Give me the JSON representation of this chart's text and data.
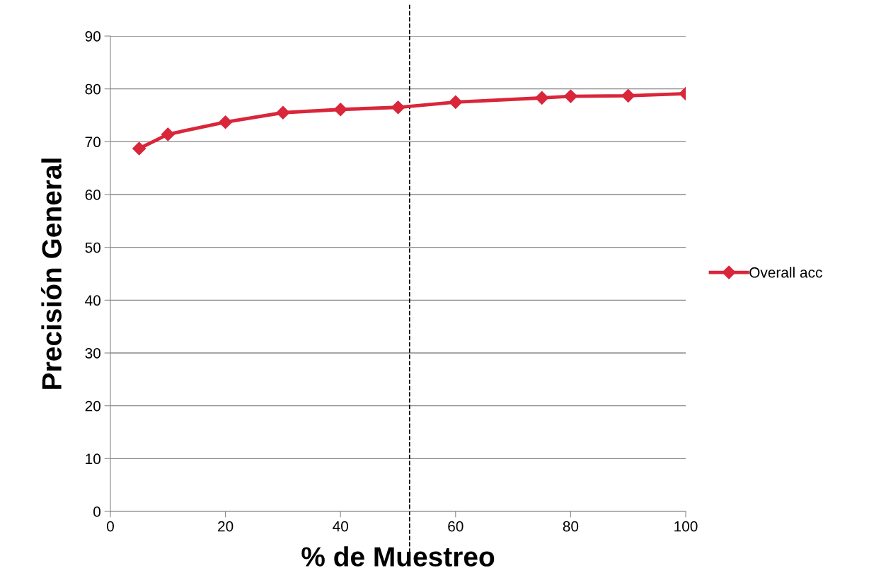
{
  "chart_data": {
    "type": "line",
    "xlabel": "% de Muestreo",
    "ylabel": "Precisión General",
    "xlim": [
      0,
      100
    ],
    "xticks": [
      0,
      20,
      40,
      60,
      80,
      100
    ],
    "ylim": [
      0,
      90
    ],
    "yticks": [
      0,
      10,
      20,
      30,
      40,
      50,
      60,
      70,
      80,
      90
    ],
    "series": [
      {
        "name": "Overall acc",
        "color": "#d9263a",
        "x": [
          5,
          10,
          20,
          30,
          40,
          50,
          60,
          75,
          80,
          90,
          100
        ],
        "values": [
          68.7,
          71.4,
          73.7,
          75.5,
          76.1,
          76.5,
          77.5,
          78.3,
          78.6,
          78.7,
          79.1
        ]
      }
    ],
    "ref_lines": [
      {
        "axis": "x",
        "value": 52,
        "color": "#000000",
        "line_style": "dashed"
      }
    ],
    "grid": "y",
    "legend": "right",
    "marker": "diamond",
    "line_style": "solid"
  }
}
